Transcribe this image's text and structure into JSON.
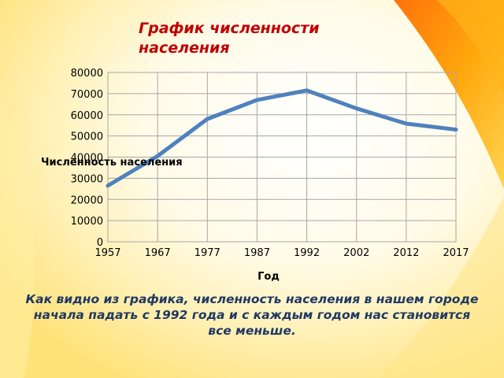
{
  "title": "График численности населения",
  "caption": "Как видно из графика, численность населения в нашем городе начала падать с 1992 года и с каждым годом нас становится все меньше.",
  "colors": {
    "line": "#4f81bd",
    "title": "#c00000",
    "caption": "#1f3864",
    "grid": "#a6a6a6"
  },
  "chart_data": {
    "type": "line",
    "title": "График численности населения",
    "xlabel": "Год",
    "ylabel": "Численность населения",
    "categories": [
      "1957",
      "1967",
      "1977",
      "1987",
      "1992",
      "2002",
      "2012",
      "2017"
    ],
    "series": [
      {
        "values": [
          26500,
          40500,
          58000,
          67000,
          71500,
          63000,
          55800,
          53000
        ]
      }
    ],
    "ylim": [
      0,
      80000
    ],
    "yticks": [
      "0",
      "10000",
      "20000",
      "30000",
      "40000",
      "50000",
      "60000",
      "70000",
      "80000"
    ],
    "grid": true,
    "legend": "none"
  }
}
